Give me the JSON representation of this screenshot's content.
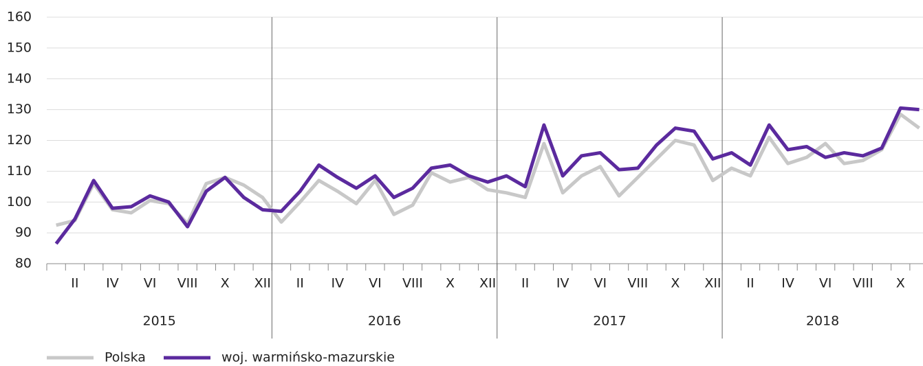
{
  "chart_data": {
    "type": "line",
    "categories": [
      null,
      "II",
      null,
      "IV",
      null,
      "VI",
      null,
      "VIII",
      null,
      "X",
      null,
      "XII",
      null,
      "II",
      null,
      "IV",
      null,
      "VI",
      null,
      "VIII",
      null,
      "X",
      null,
      "XII",
      null,
      "II",
      null,
      "IV",
      null,
      "VI",
      null,
      "VIII",
      null,
      "X",
      null,
      "XII",
      null,
      "II",
      null,
      "IV",
      null,
      "VI",
      null,
      "VIII",
      null,
      "X",
      null
    ],
    "years": [
      "2015",
      "2016",
      "2017",
      "2018"
    ],
    "series": [
      {
        "name": "Polska",
        "color": "#c8c8c8",
        "values": [
          92.5,
          94,
          106,
          97.5,
          96.5,
          100.5,
          99.5,
          93,
          106,
          108,
          105.5,
          101.5,
          93.5,
          100,
          107,
          103.5,
          99.5,
          107,
          96,
          99,
          109.5,
          106.5,
          108,
          104,
          103,
          101.5,
          119,
          103,
          108.5,
          111.5,
          102,
          108,
          114,
          120,
          118.5,
          107,
          111,
          108.5,
          121,
          112.5,
          114.5,
          119,
          112.5,
          113.5,
          117,
          128.5,
          124
        ]
      },
      {
        "name": "woj. warmińsko-mazurskie",
        "color": "#5b2a9e",
        "values": [
          86.5,
          94.5,
          107,
          98,
          98.5,
          102,
          100,
          92,
          103.5,
          108,
          101.5,
          97.5,
          97,
          103.5,
          112,
          108,
          104.5,
          108.5,
          101.5,
          104.5,
          111,
          112,
          108.5,
          106.5,
          108.5,
          105,
          125,
          108.5,
          115,
          116,
          110.5,
          111,
          118.5,
          124,
          123,
          114,
          116,
          112,
          125,
          117,
          118,
          114.5,
          116,
          115,
          117.5,
          130.5,
          130
        ]
      }
    ],
    "ylim": [
      80,
      160
    ],
    "yticks": [
      80,
      90,
      100,
      110,
      120,
      130,
      140,
      150,
      160
    ],
    "grid": true
  }
}
